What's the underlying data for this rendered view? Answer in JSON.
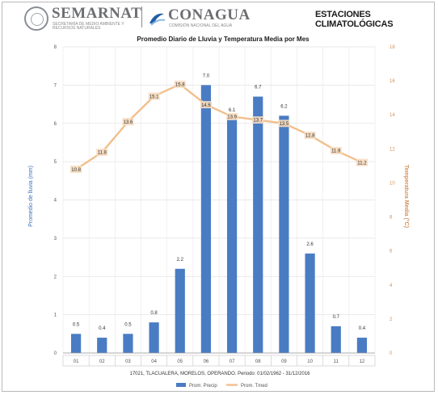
{
  "header": {
    "org1": "SEMARNAT",
    "org1_sub": "SECRETARÍA DE MEDIO AMBIENTE Y RECURSOS NATURALES",
    "org2": "CONAGUA",
    "org2_sub": "COMISIÓN NACIONAL DEL AGUA",
    "section": "ESTACIONES CLIMATOLÓGICAS"
  },
  "chart_data": {
    "type": "bar",
    "title": "Promedio Diario de Lluvia y Temperatura Media por Mes",
    "footer": "17021, TLACUALERA, MORELOS, OPERANDO. Periodo: 01/02/1962 - 31/12/2016",
    "categories": [
      "01",
      "02",
      "03",
      "04",
      "05",
      "06",
      "07",
      "08",
      "09",
      "10",
      "11",
      "12"
    ],
    "ylabel_left": "Promedio de lluvia (mm)",
    "ylabel_right": "Temperatura Media (°C)",
    "ylim_left": [
      0,
      8
    ],
    "yticks_left": [
      0,
      1,
      2,
      3,
      4,
      5,
      6,
      7,
      8
    ],
    "ylim_right": [
      0,
      18
    ],
    "yticks_right": [
      0,
      2,
      4,
      6,
      8,
      10,
      12,
      14,
      16,
      18
    ],
    "grid": true,
    "legend_position": "bottom",
    "series": [
      {
        "name": "Prom. Precip",
        "kind": "bar",
        "axis": "left",
        "color": "#4a7cc4",
        "values": [
          0.5,
          0.4,
          0.5,
          0.8,
          2.2,
          7.0,
          6.1,
          6.7,
          6.2,
          2.6,
          0.7,
          0.4
        ]
      },
      {
        "name": "Prom. Tmed",
        "kind": "line",
        "axis": "right",
        "color": "#f2bf8c",
        "values": [
          10.8,
          11.8,
          13.6,
          15.1,
          15.8,
          14.6,
          13.9,
          13.7,
          13.5,
          12.8,
          11.9,
          11.2
        ]
      }
    ]
  }
}
